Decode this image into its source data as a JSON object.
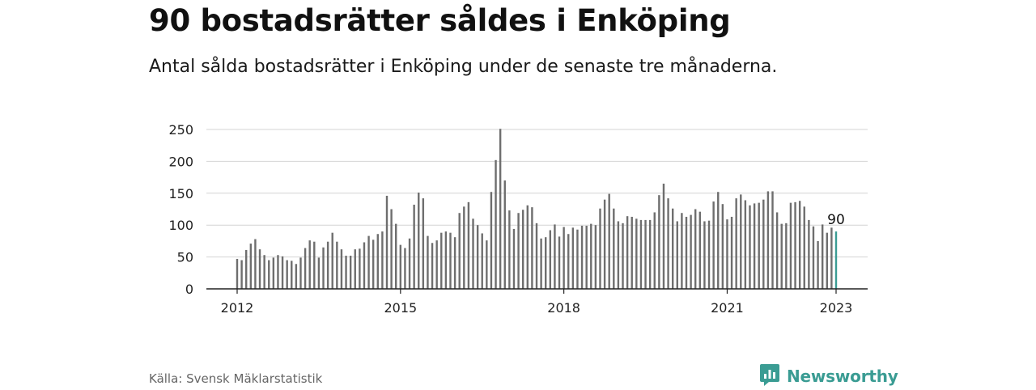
{
  "title": "90 bostadsrätter såldes i Enköping",
  "subtitle": "Antal sålda bostadsrätter i Enköping under de senaste tre månaderna.",
  "source": "Källa: Svensk Mäklarstatistik",
  "brand": {
    "name": "Newsworthy",
    "icon": "newsworthy-logo-icon",
    "color": "#3a9c93"
  },
  "chart_data": {
    "type": "bar",
    "title": "",
    "xlabel": "",
    "ylabel": "",
    "ylim": [
      0,
      250
    ],
    "yticks": [
      0,
      50,
      100,
      150,
      200,
      250
    ],
    "xticks": [
      "2012",
      "2015",
      "2018",
      "2021",
      "2023"
    ],
    "grid": true,
    "bar_color": "#6e6e6e",
    "highlight_color": "#3a9c93",
    "highlight_label": "90",
    "start": "2012-01",
    "end": "2023-01",
    "values": [
      47,
      45,
      61,
      71,
      78,
      62,
      53,
      45,
      49,
      53,
      51,
      45,
      44,
      39,
      49,
      64,
      76,
      74,
      49,
      65,
      74,
      88,
      74,
      62,
      52,
      52,
      62,
      63,
      73,
      83,
      77,
      86,
      90,
      146,
      125,
      102,
      69,
      64,
      79,
      132,
      151,
      142,
      83,
      72,
      76,
      88,
      90,
      88,
      81,
      119,
      129,
      136,
      110,
      100,
      87,
      76,
      152,
      202,
      251,
      170,
      123,
      94,
      119,
      124,
      131,
      128,
      103,
      79,
      81,
      92,
      101,
      82,
      97,
      86,
      96,
      93,
      99,
      99,
      102,
      100,
      126,
      140,
      149,
      126,
      106,
      103,
      114,
      113,
      110,
      108,
      108,
      108,
      120,
      147,
      165,
      142,
      126,
      106,
      119,
      113,
      116,
      125,
      121,
      106,
      107,
      137,
      152,
      133,
      109,
      113,
      142,
      148,
      139,
      131,
      134,
      135,
      140,
      153,
      153,
      120,
      102,
      103,
      135,
      136,
      138,
      129,
      108,
      98,
      75,
      101,
      88,
      96,
      90
    ]
  }
}
